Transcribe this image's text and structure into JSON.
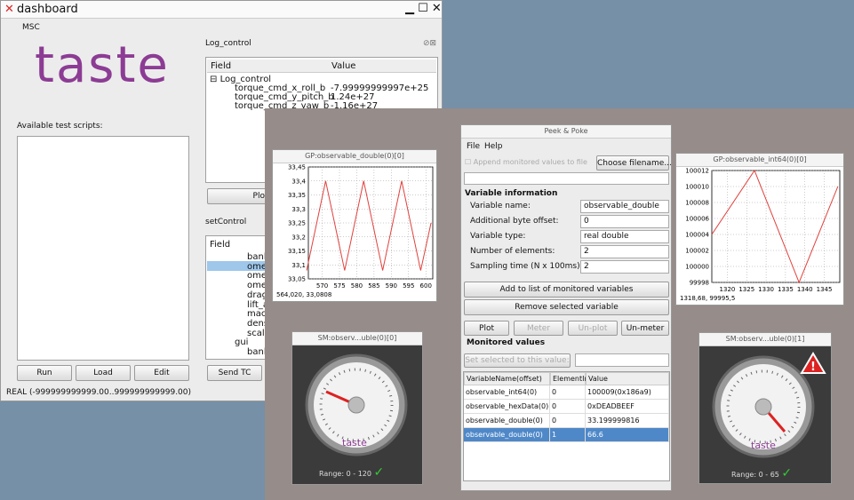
{
  "dashboard": {
    "title": "dashboard",
    "menu": "MSC",
    "logo": "taste",
    "scripts_label": "Available test scripts:",
    "buttons": [
      "Run",
      "Load",
      "Edit"
    ],
    "status": "REAL (-999999999999.00..999999999999.00)",
    "log_control": {
      "title": "Log_control",
      "headers": [
        "Field",
        "Value"
      ],
      "root": "Log_control",
      "rows": [
        [
          "torque_cmd_x_roll_b",
          "-7.99999999997e+25"
        ],
        [
          "torque_cmd_y_pitch_b",
          "1.24e+27"
        ],
        [
          "torque_cmd_z_yaw_b",
          "-1.16e+27"
        ]
      ],
      "plot_button": "Plot"
    },
    "set_control": {
      "title": "setControl",
      "header": "Field",
      "items": [
        "bank",
        "omeg",
        "omeg",
        "omeg",
        "drag_",
        "lift_ac",
        "mach",
        "densi",
        "scale"
      ],
      "group": "gui",
      "group_items": [
        "bank_"
      ],
      "send_button": "Send TC"
    }
  },
  "chart_data": [
    {
      "type": "line",
      "title": "GP:observable_double(0)[0]",
      "status": "564,020,  33,0808",
      "color": "#e0403c",
      "grid": true,
      "x": [
        565.5,
        571,
        576.5,
        582,
        587.5,
        593,
        598.5,
        601.5
      ],
      "values": [
        33.08,
        33.4,
        33.08,
        33.4,
        33.08,
        33.4,
        33.08,
        33.25
      ],
      "xlim": [
        566,
        602
      ],
      "xticks": [
        570,
        575,
        580,
        585,
        590,
        595,
        600
      ],
      "ylim": [
        33.05,
        33.45
      ],
      "yticks": [
        {
          "value": 33.05,
          "label": "33,05"
        },
        {
          "value": 33.1,
          "label": "33,1"
        },
        {
          "value": 33.15,
          "label": "33,15"
        },
        {
          "value": 33.2,
          "label": "33,2"
        },
        {
          "value": 33.25,
          "label": "33,25"
        },
        {
          "value": 33.3,
          "label": "33,3"
        },
        {
          "value": 33.35,
          "label": "33,35"
        },
        {
          "value": 33.4,
          "label": "33,4"
        },
        {
          "value": 33.45,
          "label": "33,45"
        }
      ]
    },
    {
      "type": "line",
      "title": "GP:observable_int64(0)[0]",
      "status": "1318,68,  99995,5",
      "color": "#e0403c",
      "grid": true,
      "x": [
        1316,
        1327,
        1338.5,
        1348.5
      ],
      "values": [
        100004,
        100012,
        99998,
        100010
      ],
      "xlim": [
        1316,
        1349
      ],
      "xticks": [
        1320,
        1325,
        1330,
        1335,
        1340,
        1345
      ],
      "ylim": [
        99998,
        100012
      ],
      "yticks": [
        99998,
        100000,
        100002,
        100004,
        100006,
        100008,
        100010,
        100012
      ]
    }
  ],
  "meters": [
    {
      "title": "SM:observ...uble(0)[0]",
      "logo": "taste",
      "range_label": "Range:",
      "min": "0",
      "sep": "-",
      "max": "120"
    },
    {
      "title": "SM:observ...uble(0)[1]",
      "logo": "taste",
      "range_label": "Range:",
      "min": "0",
      "sep": "-",
      "max": "65"
    }
  ],
  "peek_poke": {
    "title": "Peek & Poke",
    "menu": [
      "File",
      "Help"
    ],
    "append_label": "Append monitored values to file",
    "choose_button": "Choose filename...",
    "section": "Variable information",
    "fields": [
      [
        "Variable name:",
        "observable_double"
      ],
      [
        "Additional byte offset:",
        "0"
      ],
      [
        "Variable type:",
        "real double"
      ],
      [
        "Number of elements:",
        "2"
      ],
      [
        "Sampling time (N x 100ms):",
        "2"
      ]
    ],
    "add_button": "Add to list of monitored variables",
    "remove_button": "Remove selected variable",
    "actions": [
      "Plot",
      "Meter",
      "Un-plot",
      "Un-meter"
    ],
    "monitored": "Monitored values",
    "set_button": "Set selected to this value:",
    "headers": [
      "VariableName(offset)",
      "ElementIndex",
      "Value"
    ],
    "rows": [
      [
        "observable_int64(0)",
        "0",
        "100009(0x186a9)"
      ],
      [
        "observable_hexData(0)",
        "0",
        "0xDEADBEEF"
      ],
      [
        "observable_double(0)",
        "0",
        "33.199999816"
      ],
      [
        "observable_double(0)",
        "1",
        "66.6"
      ]
    ]
  }
}
